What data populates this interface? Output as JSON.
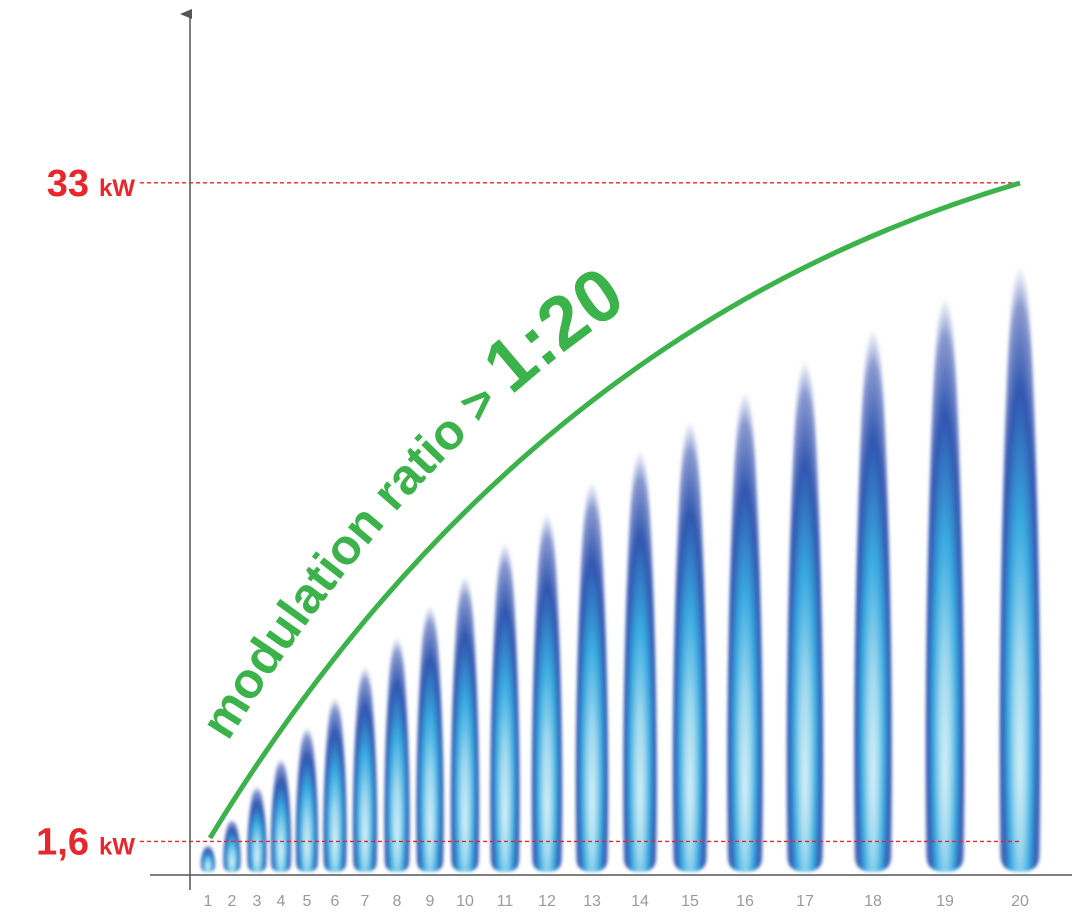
{
  "chart_data": {
    "type": "flame",
    "categories": [
      "1",
      "2",
      "3",
      "4",
      "5",
      "6",
      "7",
      "8",
      "9",
      "10",
      "11",
      "12",
      "13",
      "14",
      "15",
      "16",
      "17",
      "18",
      "19",
      "20"
    ],
    "values": [
      1.6,
      3.0,
      4.8,
      6.3,
      8.0,
      9.6,
      11.3,
      12.9,
      14.6,
      16.2,
      18.0,
      19.6,
      21.3,
      23.0,
      24.6,
      26.2,
      27.9,
      29.6,
      31.3,
      33
    ],
    "ylim": [
      0,
      41
    ],
    "reference_lines": [
      {
        "value": 33,
        "label": "33",
        "unit": "kW"
      },
      {
        "value": 1.6,
        "label": "1,6",
        "unit": "kW"
      }
    ],
    "reference_color": "#e8262b",
    "annotation": [
      "modulation ratio > ",
      "1:20"
    ],
    "annotation_color": "#3bb34a"
  }
}
